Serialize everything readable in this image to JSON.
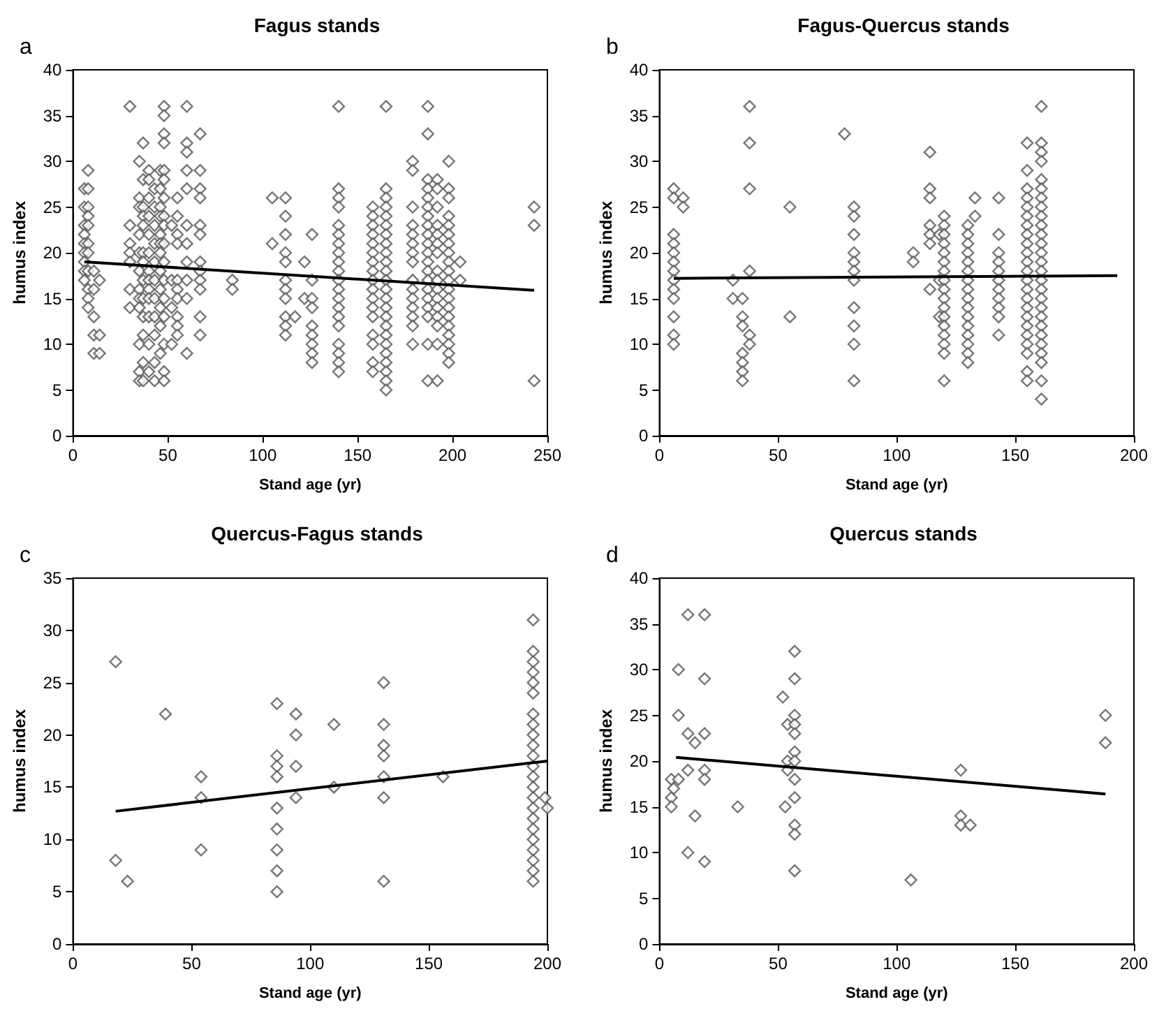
{
  "chart_data": [
    {
      "type": "scatter",
      "title": "Fagus stands",
      "xlabel": "Stand age (yr)",
      "ylabel": "humus index",
      "annotations": [
        "a"
      ],
      "xlim": [
        0,
        250
      ],
      "xticks": [
        0,
        50,
        100,
        150,
        200,
        250
      ],
      "ylim": [
        0,
        40
      ],
      "yticks": [
        0,
        5,
        10,
        15,
        20,
        25,
        30,
        35,
        40
      ],
      "grid": false,
      "marker": "diamond",
      "series": [
        {
          "color": "#555555",
          "x": [
            6,
            6,
            6,
            6,
            6,
            6,
            6,
            6,
            6,
            8,
            8,
            8,
            8,
            8,
            8,
            8,
            8,
            8,
            8,
            8,
            11,
            11,
            11,
            11,
            11,
            14,
            14,
            14,
            30,
            30,
            30,
            30,
            30,
            30,
            30,
            35,
            35,
            35,
            35,
            35,
            35,
            35,
            35,
            35,
            35,
            35,
            35,
            37,
            37,
            37,
            37,
            37,
            37,
            37,
            37,
            37,
            37,
            37,
            37,
            37,
            40,
            40,
            40,
            40,
            40,
            40,
            40,
            40,
            40,
            40,
            40,
            40,
            40,
            43,
            43,
            43,
            43,
            43,
            43,
            43,
            43,
            43,
            43,
            43,
            46,
            46,
            46,
            46,
            46,
            46,
            46,
            46,
            46,
            46,
            46,
            46,
            48,
            48,
            48,
            48,
            48,
            48,
            48,
            48,
            48,
            48,
            48,
            48,
            48,
            48,
            48,
            48,
            48,
            52,
            52,
            52,
            52,
            55,
            55,
            55,
            55,
            55,
            55,
            55,
            55,
            55,
            55,
            60,
            60,
            60,
            60,
            60,
            60,
            60,
            60,
            60,
            60,
            60,
            67,
            67,
            67,
            67,
            67,
            67,
            67,
            67,
            67,
            67,
            67,
            67,
            84,
            84,
            105,
            105,
            112,
            112,
            112,
            112,
            112,
            112,
            112,
            112,
            112,
            112,
            112,
            117,
            122,
            122,
            126,
            126,
            126,
            126,
            126,
            126,
            126,
            126,
            126,
            140,
            140,
            140,
            140,
            140,
            140,
            140,
            140,
            140,
            140,
            140,
            140,
            140,
            140,
            140,
            140,
            140,
            140,
            140,
            140,
            158,
            158,
            158,
            158,
            158,
            158,
            158,
            158,
            158,
            158,
            158,
            158,
            158,
            158,
            158,
            158,
            158,
            165,
            165,
            165,
            165,
            165,
            165,
            165,
            165,
            165,
            165,
            165,
            165,
            165,
            165,
            165,
            165,
            165,
            165,
            165,
            165,
            165,
            165,
            165,
            165,
            179,
            179,
            179,
            179,
            179,
            179,
            179,
            179,
            179,
            179,
            179,
            179,
            179,
            179,
            179,
            187,
            187,
            187,
            187,
            187,
            187,
            187,
            187,
            187,
            187,
            187,
            187,
            187,
            187,
            187,
            187,
            187,
            187,
            187,
            187,
            192,
            192,
            192,
            192,
            192,
            192,
            192,
            192,
            192,
            192,
            192,
            192,
            192,
            192,
            192,
            192,
            198,
            198,
            198,
            198,
            198,
            198,
            198,
            198,
            198,
            198,
            198,
            198,
            198,
            198,
            198,
            198,
            198,
            198,
            198,
            198,
            204,
            204,
            243,
            243,
            243
          ],
          "values": [
            27,
            25,
            23,
            22,
            21,
            20,
            19,
            18,
            17,
            29,
            27,
            25,
            24,
            23,
            21,
            20,
            18,
            16,
            15,
            14,
            18,
            16,
            13,
            11,
            9,
            17,
            11,
            9,
            36,
            23,
            21,
            20,
            19,
            16,
            14,
            30,
            26,
            25,
            22,
            20,
            18,
            16,
            15,
            14,
            10,
            7,
            6,
            32,
            28,
            25,
            24,
            23,
            20,
            19,
            17,
            15,
            13,
            11,
            8,
            6,
            29,
            28,
            26,
            24,
            22,
            20,
            18,
            17,
            16,
            15,
            13,
            10,
            7,
            27,
            25,
            23,
            21,
            19,
            17,
            15,
            13,
            11,
            8,
            6,
            29,
            27,
            25,
            24,
            22,
            21,
            20,
            18,
            16,
            14,
            12,
            9,
            36,
            35,
            33,
            32,
            29,
            28,
            26,
            24,
            23,
            21,
            19,
            17,
            15,
            13,
            10,
            7,
            6,
            23,
            17,
            14,
            10,
            26,
            24,
            22,
            21,
            17,
            16,
            15,
            13,
            12,
            11,
            36,
            32,
            31,
            29,
            27,
            23,
            21,
            19,
            17,
            15,
            9,
            33,
            29,
            27,
            26,
            23,
            22,
            19,
            18,
            17,
            16,
            13,
            11,
            17,
            16,
            26,
            21,
            26,
            24,
            22,
            20,
            19,
            17,
            16,
            15,
            13,
            12,
            11,
            13,
            19,
            15,
            22,
            17,
            15,
            14,
            12,
            11,
            10,
            9,
            8,
            36,
            27,
            26,
            25,
            23,
            22,
            21,
            20,
            19,
            18,
            17,
            16,
            15,
            14,
            13,
            12,
            10,
            9,
            8,
            7,
            25,
            24,
            23,
            22,
            21,
            20,
            19,
            18,
            17,
            16,
            15,
            14,
            13,
            11,
            10,
            8,
            7,
            36,
            27,
            26,
            25,
            24,
            23,
            22,
            21,
            20,
            19,
            18,
            17,
            16,
            15,
            14,
            13,
            12,
            11,
            10,
            9,
            8,
            7,
            6,
            5,
            30,
            29,
            25,
            23,
            22,
            21,
            20,
            19,
            17,
            16,
            15,
            14,
            13,
            12,
            10,
            36,
            33,
            28,
            27,
            26,
            25,
            24,
            23,
            22,
            21,
            20,
            19,
            18,
            17,
            16,
            15,
            14,
            13,
            10,
            6,
            28,
            27,
            25,
            23,
            22,
            21,
            20,
            18,
            17,
            16,
            15,
            14,
            13,
            12,
            10,
            6,
            30,
            27,
            26,
            24,
            23,
            22,
            21,
            20,
            19,
            18,
            17,
            16,
            15,
            14,
            13,
            12,
            11,
            10,
            9,
            8,
            19,
            17,
            25,
            23,
            6
          ]
        },
        {
          "type": "line",
          "color": "#000000",
          "marker": "none",
          "line_style": "solid",
          "x": [
            6,
            243
          ],
          "values": [
            19,
            15.9
          ]
        }
      ]
    },
    {
      "type": "scatter",
      "title": "Fagus-Quercus stands",
      "xlabel": "Stand age (yr)",
      "ylabel": "humus index",
      "annotations": [
        "b"
      ],
      "xlim": [
        0,
        200
      ],
      "xticks": [
        0,
        50,
        100,
        150,
        200
      ],
      "ylim": [
        0,
        40
      ],
      "yticks": [
        0,
        5,
        10,
        15,
        20,
        25,
        30,
        35,
        40
      ],
      "grid": false,
      "marker": "diamond",
      "series": [
        {
          "color": "#555555",
          "x": [
            6,
            6,
            6,
            6,
            6,
            6,
            6,
            6,
            6,
            6,
            6,
            6,
            6,
            10,
            10,
            31,
            31,
            35,
            35,
            35,
            35,
            35,
            35,
            35,
            38,
            38,
            38,
            38,
            38,
            38,
            55,
            55,
            78,
            82,
            82,
            82,
            82,
            82,
            82,
            82,
            82,
            82,
            82,
            82,
            107,
            107,
            114,
            114,
            114,
            114,
            114,
            114,
            114,
            118,
            118,
            118,
            120,
            120,
            120,
            120,
            120,
            120,
            120,
            120,
            120,
            120,
            120,
            120,
            120,
            120,
            120,
            120,
            120,
            130,
            130,
            130,
            130,
            130,
            130,
            130,
            130,
            130,
            130,
            130,
            130,
            130,
            130,
            130,
            130,
            133,
            133,
            143,
            143,
            143,
            143,
            143,
            143,
            143,
            143,
            143,
            143,
            143,
            155,
            155,
            155,
            155,
            155,
            155,
            155,
            155,
            155,
            155,
            155,
            155,
            155,
            155,
            155,
            155,
            155,
            155,
            155,
            155,
            155,
            155,
            155,
            161,
            161,
            161,
            161,
            161,
            161,
            161,
            161,
            161,
            161,
            161,
            161,
            161,
            161,
            161,
            161,
            161,
            161,
            161,
            161,
            161,
            161,
            161,
            161,
            161,
            161,
            161
          ],
          "values": [
            27,
            26,
            22,
            21,
            20,
            19,
            18,
            17,
            16,
            15,
            13,
            11,
            10,
            26,
            25,
            17,
            15,
            15,
            13,
            12,
            9,
            8,
            7,
            6,
            36,
            32,
            27,
            18,
            11,
            10,
            25,
            13,
            33,
            25,
            24,
            22,
            20,
            19,
            18,
            17,
            14,
            12,
            10,
            6,
            20,
            19,
            31,
            27,
            26,
            23,
            22,
            21,
            16,
            22,
            17,
            13,
            24,
            23,
            22,
            21,
            20,
            19,
            18,
            17,
            16,
            15,
            14,
            13,
            12,
            11,
            10,
            9,
            6,
            23,
            22,
            21,
            20,
            19,
            18,
            17,
            16,
            15,
            14,
            13,
            12,
            11,
            10,
            9,
            8,
            26,
            24,
            26,
            22,
            20,
            19,
            18,
            17,
            16,
            15,
            14,
            13,
            11,
            32,
            29,
            27,
            26,
            25,
            24,
            23,
            22,
            21,
            20,
            19,
            18,
            17,
            16,
            15,
            14,
            13,
            12,
            11,
            10,
            9,
            7,
            6,
            36,
            32,
            31,
            30,
            28,
            27,
            26,
            25,
            24,
            23,
            22,
            21,
            20,
            19,
            18,
            17,
            16,
            15,
            14,
            13,
            12,
            11,
            10,
            9,
            8,
            6,
            4
          ]
        },
        {
          "type": "line",
          "color": "#000000",
          "marker": "none",
          "line_style": "solid",
          "x": [
            6,
            193
          ],
          "values": [
            17.2,
            17.5
          ]
        }
      ]
    },
    {
      "type": "scatter",
      "title": "Quercus-Fagus stands",
      "xlabel": "Stand age (yr)",
      "ylabel": "humus index",
      "annotations": [
        "c"
      ],
      "xlim": [
        0,
        200
      ],
      "xticks": [
        0,
        50,
        100,
        150,
        200
      ],
      "ylim": [
        0,
        35
      ],
      "yticks": [
        0,
        5,
        10,
        15,
        20,
        25,
        30,
        35
      ],
      "grid": false,
      "marker": "diamond",
      "series": [
        {
          "color": "#555555",
          "x": [
            18,
            18,
            23,
            39,
            54,
            54,
            54,
            86,
            86,
            86,
            86,
            86,
            86,
            86,
            86,
            86,
            94,
            94,
            94,
            94,
            110,
            110,
            131,
            131,
            131,
            131,
            131,
            131,
            131,
            156,
            194,
            194,
            194,
            194,
            194,
            194,
            194,
            194,
            194,
            194,
            194,
            194,
            194,
            194,
            194,
            194,
            194,
            194,
            194,
            194,
            194,
            194,
            194,
            199,
            200
          ],
          "values": [
            27,
            8,
            6,
            22,
            16,
            14,
            9,
            23,
            18,
            17,
            16,
            13,
            11,
            9,
            7,
            5,
            22,
            20,
            17,
            14,
            21,
            15,
            25,
            21,
            19,
            18,
            16,
            14,
            6,
            16,
            31,
            28,
            27,
            26,
            25,
            24,
            22,
            21,
            20,
            19,
            18,
            17,
            16,
            15,
            14,
            13,
            12,
            11,
            10,
            9,
            8,
            7,
            6,
            14,
            13
          ]
        },
        {
          "type": "line",
          "color": "#000000",
          "marker": "none",
          "line_style": "solid",
          "x": [
            18,
            200
          ],
          "values": [
            12.7,
            17.5
          ]
        }
      ]
    },
    {
      "type": "scatter",
      "title": "Quercus stands",
      "xlabel": "Stand age (yr)",
      "ylabel": "humus index",
      "annotations": [
        "d"
      ],
      "xlim": [
        0,
        200
      ],
      "xticks": [
        0,
        50,
        100,
        150,
        200
      ],
      "ylim": [
        0,
        40
      ],
      "yticks": [
        0,
        5,
        10,
        15,
        20,
        25,
        30,
        35,
        40
      ],
      "grid": false,
      "marker": "diamond",
      "series": [
        {
          "color": "#555555",
          "x": [
            5,
            5,
            5,
            6,
            8,
            8,
            8,
            12,
            12,
            12,
            12,
            15,
            15,
            19,
            19,
            19,
            19,
            19,
            19,
            33,
            52,
            54,
            54,
            54,
            53,
            57,
            57,
            57,
            57,
            57,
            57,
            57,
            57,
            57,
            57,
            57,
            57,
            106,
            127,
            127,
            127,
            131,
            188,
            188
          ],
          "values": [
            18,
            16,
            15,
            17,
            30,
            25,
            18,
            36,
            23,
            19,
            10,
            22,
            14,
            36,
            29,
            23,
            19,
            18,
            9,
            15,
            27,
            24,
            20,
            19,
            15,
            32,
            29,
            25,
            24,
            23,
            21,
            20,
            18,
            16,
            13,
            12,
            8,
            7,
            19,
            14,
            13,
            13,
            25,
            22
          ]
        },
        {
          "type": "line",
          "color": "#000000",
          "marker": "none",
          "line_style": "solid",
          "x": [
            7,
            188
          ],
          "values": [
            20.4,
            16.4
          ]
        }
      ]
    }
  ]
}
